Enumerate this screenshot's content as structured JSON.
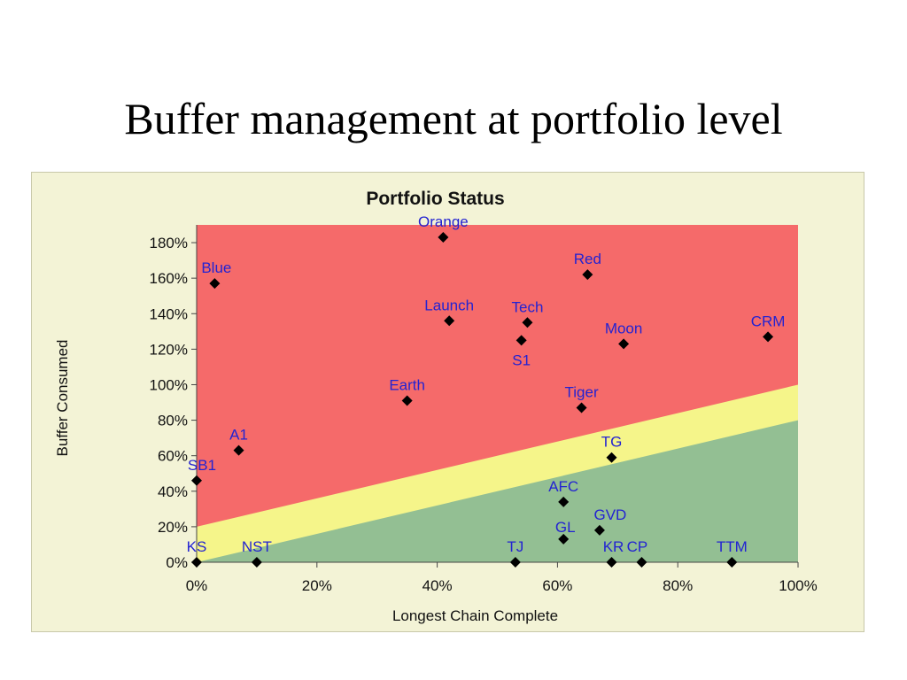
{
  "slide": {
    "title": "Buffer management at portfolio level"
  },
  "chart_data": {
    "type": "scatter",
    "title": "Portfolio Status",
    "xlabel": "Longest Chain Complete",
    "ylabel": "Buffer Consumed",
    "xlim": [
      0,
      100
    ],
    "ylim": [
      0,
      190
    ],
    "x_unit": "%",
    "y_unit": "%",
    "x_ticks": [
      "0%",
      "20%",
      "40%",
      "60%",
      "80%",
      "100%"
    ],
    "y_ticks": [
      "0%",
      "20%",
      "40%",
      "60%",
      "80%",
      "100%",
      "120%",
      "140%",
      "160%",
      "180%"
    ],
    "grid": false,
    "zones": [
      {
        "zone": "red",
        "color": "#f56a6a",
        "lower_boundary": [
          [
            0,
            20
          ],
          [
            100,
            100
          ]
        ]
      },
      {
        "zone": "yellow",
        "color": "#f5f58a",
        "lower_boundary": [
          [
            0,
            0
          ],
          [
            100,
            80
          ]
        ]
      },
      {
        "zone": "green",
        "color": "#93bf93",
        "lower_boundary": [
          [
            0,
            0
          ],
          [
            100,
            0
          ]
        ]
      }
    ],
    "marker_color": "#000000",
    "label_color": "#2323d2",
    "points": [
      {
        "label": "Orange",
        "x": 41,
        "y": 183
      },
      {
        "label": "Blue",
        "x": 3,
        "y": 157
      },
      {
        "label": "Red",
        "x": 65,
        "y": 162
      },
      {
        "label": "Launch",
        "x": 42,
        "y": 136
      },
      {
        "label": "Tech",
        "x": 55,
        "y": 135
      },
      {
        "label": "S1",
        "x": 54,
        "y": 125
      },
      {
        "label": "Moon",
        "x": 71,
        "y": 123
      },
      {
        "label": "CRM",
        "x": 95,
        "y": 127
      },
      {
        "label": "Earth",
        "x": 35,
        "y": 91
      },
      {
        "label": "Tiger",
        "x": 64,
        "y": 87
      },
      {
        "label": "A1",
        "x": 7,
        "y": 63
      },
      {
        "label": "SB1",
        "x": 0,
        "y": 46
      },
      {
        "label": "TG",
        "x": 69,
        "y": 59
      },
      {
        "label": "AFC",
        "x": 61,
        "y": 34
      },
      {
        "label": "GVD",
        "x": 67,
        "y": 18
      },
      {
        "label": "GL",
        "x": 61,
        "y": 13
      },
      {
        "label": "KS",
        "x": 0,
        "y": 0
      },
      {
        "label": "NST",
        "x": 10,
        "y": 0
      },
      {
        "label": "TJ",
        "x": 53,
        "y": 0
      },
      {
        "label": "KR",
        "x": 69,
        "y": 0
      },
      {
        "label": "CP",
        "x": 74,
        "y": 0
      },
      {
        "label": "TTM",
        "x": 89,
        "y": 0
      }
    ]
  }
}
